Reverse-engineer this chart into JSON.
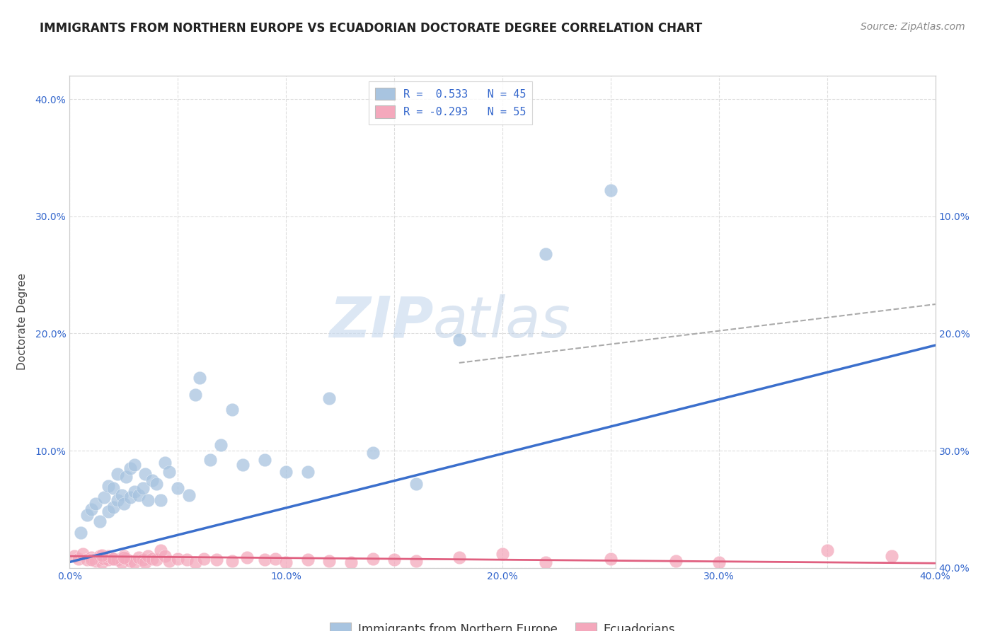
{
  "title": "IMMIGRANTS FROM NORTHERN EUROPE VS ECUADORIAN DOCTORATE DEGREE CORRELATION CHART",
  "source": "Source: ZipAtlas.com",
  "ylabel": "Doctorate Degree",
  "xlim": [
    0.0,
    0.4
  ],
  "ylim": [
    0.0,
    0.42
  ],
  "xtick_labels": [
    "0.0%",
    "",
    "10.0%",
    "",
    "20.0%",
    "",
    "30.0%",
    "",
    "40.0%"
  ],
  "xtick_vals": [
    0.0,
    0.05,
    0.1,
    0.15,
    0.2,
    0.25,
    0.3,
    0.35,
    0.4
  ],
  "ytick_labels": [
    "",
    "10.0%",
    "20.0%",
    "30.0%",
    "40.0%"
  ],
  "ytick_vals": [
    0.0,
    0.1,
    0.2,
    0.3,
    0.4
  ],
  "right_ytick_labels": [
    "40.0%",
    "30.0%",
    "20.0%",
    "10.0%",
    ""
  ],
  "blue_color": "#a8c4e0",
  "pink_color": "#f4a8bc",
  "blue_line_color": "#3b6fcc",
  "pink_line_color": "#e06080",
  "dashed_line_color": "#aaaaaa",
  "watermark_zip": "ZIP",
  "watermark_atlas": "atlas",
  "blue_scatter_x": [
    0.005,
    0.008,
    0.01,
    0.012,
    0.014,
    0.016,
    0.018,
    0.018,
    0.02,
    0.02,
    0.022,
    0.022,
    0.024,
    0.025,
    0.026,
    0.028,
    0.028,
    0.03,
    0.03,
    0.032,
    0.034,
    0.035,
    0.036,
    0.038,
    0.04,
    0.042,
    0.044,
    0.046,
    0.05,
    0.055,
    0.058,
    0.06,
    0.065,
    0.07,
    0.075,
    0.08,
    0.09,
    0.1,
    0.11,
    0.12,
    0.14,
    0.16,
    0.18,
    0.22,
    0.25
  ],
  "blue_scatter_y": [
    0.03,
    0.045,
    0.05,
    0.055,
    0.04,
    0.06,
    0.048,
    0.07,
    0.052,
    0.068,
    0.058,
    0.08,
    0.062,
    0.055,
    0.078,
    0.06,
    0.085,
    0.065,
    0.088,
    0.062,
    0.068,
    0.08,
    0.058,
    0.075,
    0.072,
    0.058,
    0.09,
    0.082,
    0.068,
    0.062,
    0.148,
    0.162,
    0.092,
    0.105,
    0.135,
    0.088,
    0.092,
    0.082,
    0.082,
    0.145,
    0.098,
    0.072,
    0.195,
    0.268,
    0.322
  ],
  "pink_scatter_x": [
    0.002,
    0.004,
    0.006,
    0.008,
    0.01,
    0.012,
    0.014,
    0.015,
    0.016,
    0.018,
    0.018,
    0.02,
    0.022,
    0.024,
    0.025,
    0.026,
    0.028,
    0.03,
    0.032,
    0.034,
    0.035,
    0.036,
    0.038,
    0.04,
    0.042,
    0.044,
    0.046,
    0.05,
    0.054,
    0.058,
    0.062,
    0.068,
    0.075,
    0.082,
    0.09,
    0.095,
    0.1,
    0.11,
    0.12,
    0.13,
    0.14,
    0.15,
    0.16,
    0.18,
    0.2,
    0.22,
    0.25,
    0.28,
    0.3,
    0.35,
    0.38,
    0.01,
    0.015,
    0.02,
    0.025
  ],
  "pink_scatter_y": [
    0.01,
    0.008,
    0.012,
    0.007,
    0.009,
    0.006,
    0.01,
    0.005,
    0.008,
    0.007,
    0.01,
    0.008,
    0.007,
    0.005,
    0.01,
    0.008,
    0.006,
    0.005,
    0.009,
    0.007,
    0.005,
    0.01,
    0.008,
    0.007,
    0.015,
    0.01,
    0.006,
    0.008,
    0.007,
    0.005,
    0.008,
    0.007,
    0.006,
    0.009,
    0.007,
    0.008,
    0.005,
    0.007,
    0.006,
    0.005,
    0.008,
    0.007,
    0.006,
    0.009,
    0.012,
    0.005,
    0.008,
    0.006,
    0.005,
    0.015,
    0.01,
    0.007,
    0.011,
    0.008,
    0.009
  ],
  "blue_trend_x": [
    0.0,
    0.4
  ],
  "blue_trend_y": [
    0.005,
    0.19
  ],
  "pink_trend_x": [
    0.0,
    0.4
  ],
  "pink_trend_y": [
    0.01,
    0.004
  ],
  "dash_trend_x": [
    0.18,
    0.4
  ],
  "dash_trend_y": [
    0.175,
    0.225
  ],
  "background_color": "#ffffff",
  "grid_color": "#dddddd",
  "legend1_text": "R =  0.533   N = 45",
  "legend2_text": "R = -0.293   N = 55",
  "legend_bottom1": "Immigrants from Northern Europe",
  "legend_bottom2": "Ecuadorians"
}
